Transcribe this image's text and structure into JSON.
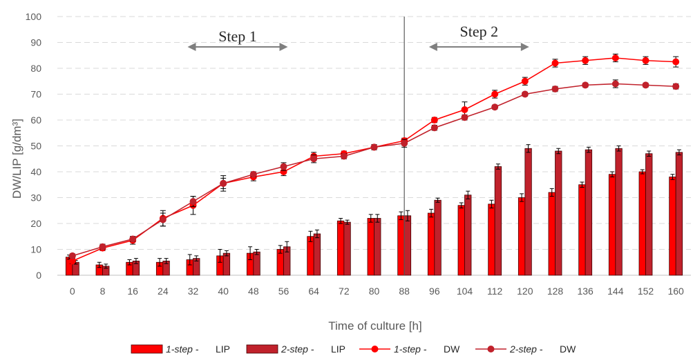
{
  "chart_data": {
    "type": "bar",
    "title": "",
    "xlabel": "Time of culture [h]",
    "ylabel": "DW/LIP [g/dm³]",
    "ylim": [
      0,
      100
    ],
    "yticks": [
      0,
      10,
      20,
      30,
      40,
      50,
      60,
      70,
      80,
      90,
      100
    ],
    "grid": "horizontal dashed",
    "legend_position": "bottom",
    "categories": [
      "0",
      "8",
      "16",
      "24",
      "32",
      "40",
      "48",
      "56",
      "64",
      "72",
      "80",
      "88",
      "96",
      "104",
      "112",
      "120",
      "128",
      "136",
      "144",
      "152",
      "160"
    ],
    "series": [
      {
        "name": "1-step - LIP",
        "kind": "bar",
        "color": "#ff0000",
        "values": [
          7,
          4,
          5,
          5,
          6,
          7.5,
          8.5,
          10,
          15,
          21,
          22,
          23,
          24,
          27,
          27.5,
          30,
          32,
          35,
          39,
          40,
          38
        ],
        "errors": [
          0.8,
          1,
          1,
          1.5,
          2,
          2.5,
          2.5,
          1.5,
          2,
          1,
          1.5,
          1.5,
          1.5,
          1,
          1.5,
          1.5,
          1.5,
          1,
          1,
          0.8,
          1
        ]
      },
      {
        "name": "2-step - LIP",
        "kind": "bar",
        "color": "#c0212b",
        "values": [
          5,
          3.5,
          5.5,
          5.5,
          6.5,
          8.5,
          9,
          11,
          16,
          20.5,
          22,
          23,
          29,
          31,
          42,
          49,
          48,
          48.5,
          49,
          47,
          47.5
        ],
        "errors": [
          0.7,
          0.8,
          1,
          1,
          1,
          1,
          1,
          2,
          1.5,
          0.8,
          1.5,
          2,
          0.8,
          1.5,
          1,
          1.5,
          1,
          1,
          1,
          1,
          1
        ]
      },
      {
        "name": "1-step - DW",
        "kind": "line",
        "color": "#ff0000",
        "values": [
          5.5,
          10.5,
          13.5,
          22,
          27,
          35.5,
          38,
          40,
          46,
          47,
          49.5,
          52,
          60,
          64,
          70,
          75,
          82,
          83,
          84,
          83,
          82.5
        ],
        "errors": [
          1,
          1,
          1.5,
          3,
          3.5,
          3,
          1.5,
          1.5,
          1.5,
          1,
          1,
          1,
          1,
          3,
          1.5,
          1.5,
          1.5,
          1.5,
          1.5,
          1.5,
          2
        ]
      },
      {
        "name": "2-step - DW",
        "kind": "line",
        "color": "#c0212b",
        "values": [
          7.5,
          11,
          14,
          21.5,
          28.5,
          35.5,
          39,
          42,
          45,
          46,
          49.5,
          51,
          57,
          61,
          65,
          70,
          72,
          73.5,
          74,
          73.5,
          73
        ],
        "errors": [
          0.8,
          1,
          1,
          2.5,
          2,
          2,
          1,
          1.5,
          1.5,
          1,
          1,
          1.5,
          1,
          1,
          0.8,
          0.8,
          1,
          0.8,
          1.5,
          0.8,
          1
        ]
      }
    ],
    "annotations": [
      {
        "text": "Step 1",
        "from": "32",
        "to": "56"
      },
      {
        "text": "Step 2",
        "from": "96",
        "to": "120"
      }
    ],
    "divider_at": "88"
  },
  "legend": {
    "items": [
      {
        "italic": "1-step -",
        "suffix": "LIP"
      },
      {
        "italic": "2-step -",
        "suffix": "LIP"
      },
      {
        "italic": "1-step -",
        "suffix": "DW"
      },
      {
        "italic": "2-step -",
        "suffix": "DW"
      }
    ]
  },
  "colors": {
    "series1": "#ff0000",
    "series2": "#c0212b",
    "error_bar": "#000000",
    "grid": "#d9d9d9",
    "arrow": "#7f7f7f",
    "divider": "#595959"
  }
}
